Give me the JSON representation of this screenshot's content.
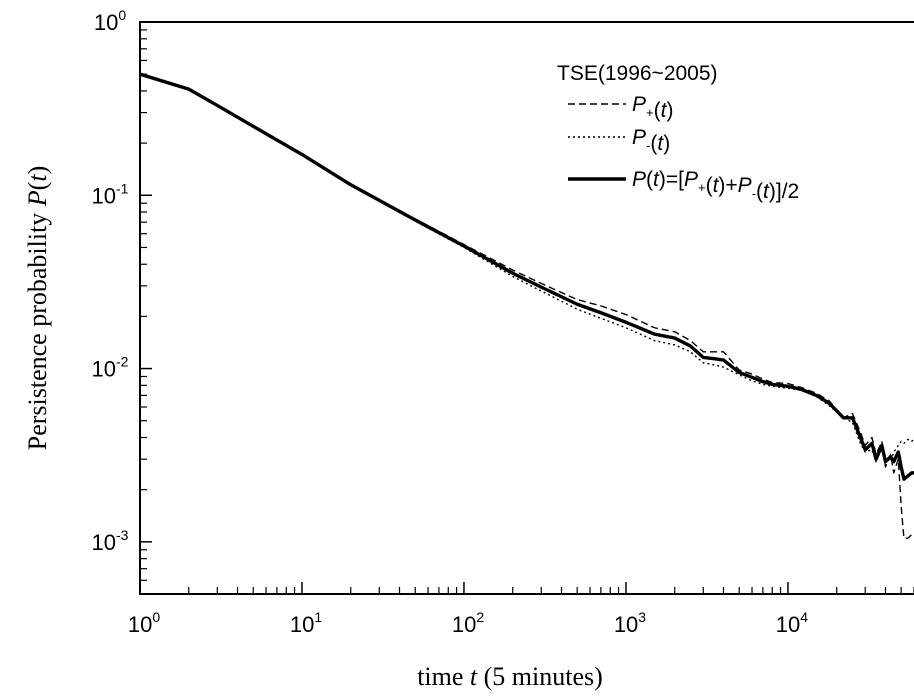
{
  "chart_data": {
    "type": "line",
    "xscale": "log",
    "yscale": "log",
    "xlim": [
      1,
      60000
    ],
    "ylim": [
      0.0005,
      1
    ],
    "xticks": [
      {
        "value": 1,
        "base": "10",
        "exp": "0"
      },
      {
        "value": 10,
        "base": "10",
        "exp": "1"
      },
      {
        "value": 100,
        "base": "10",
        "exp": "2"
      },
      {
        "value": 1000,
        "base": "10",
        "exp": "3"
      },
      {
        "value": 10000,
        "base": "10",
        "exp": "4"
      }
    ],
    "yticks": [
      {
        "value": 1,
        "base": "10",
        "exp": "0"
      },
      {
        "value": 0.1,
        "base": "10",
        "exp": "-1"
      },
      {
        "value": 0.01,
        "base": "10",
        "exp": "-2"
      },
      {
        "value": 0.001,
        "base": "10",
        "exp": "-3"
      }
    ],
    "xlabel": {
      "prefix": "time ",
      "italic": "t",
      "suffix": " (5 minutes)"
    },
    "ylabel": {
      "prefix": "Persistence probability ",
      "italic": "P",
      "open": "(",
      "italic2": "t",
      "close": ")"
    },
    "grid": false,
    "legend": {
      "position": "top-right",
      "title": "TSE(1996~2005)",
      "entries": [
        {
          "key": "plus",
          "label_parts": [
            "P",
            "+",
            "(",
            "t",
            ")"
          ],
          "style": "dashed"
        },
        {
          "key": "minus",
          "label_parts": [
            "P",
            "-",
            "(",
            "t",
            ")"
          ],
          "style": "dotted"
        },
        {
          "key": "avg",
          "label_parts": [
            "P",
            "(",
            "t",
            ")=[",
            "P",
            "+",
            "(",
            "t",
            ")+",
            "P",
            "-",
            "(",
            "t",
            ")]/2"
          ],
          "style": "solid-thick"
        }
      ]
    },
    "series": [
      {
        "name": "P+(t)",
        "key": "plus",
        "style": "dashed",
        "x": [
          1,
          2,
          3,
          5,
          10,
          20,
          50,
          100,
          200,
          300,
          500,
          700,
          1000,
          1500,
          2000,
          2500,
          3000,
          3500,
          4000,
          5000,
          6000,
          7000,
          8000,
          10000,
          12000,
          15000,
          18000,
          20000,
          22000,
          25000,
          28000,
          30000,
          33000,
          35000,
          38000,
          40000,
          43000,
          45000,
          48000,
          50000,
          52000,
          55000,
          58000,
          60000
        ],
        "y": [
          0.5,
          0.41,
          0.33,
          0.25,
          0.172,
          0.116,
          0.073,
          0.052,
          0.037,
          0.031,
          0.025,
          0.023,
          0.0205,
          0.0172,
          0.0163,
          0.0145,
          0.0125,
          0.0125,
          0.0125,
          0.0098,
          0.0093,
          0.0087,
          0.0083,
          0.0082,
          0.0078,
          0.0072,
          0.0065,
          0.0058,
          0.0052,
          0.0055,
          0.0043,
          0.0036,
          0.004,
          0.0032,
          0.0038,
          0.0027,
          0.0032,
          0.0025,
          0.003,
          0.0016,
          0.00105,
          0.00105,
          0.0011,
          0.0011
        ]
      },
      {
        "name": "P-(t)",
        "key": "minus",
        "style": "dotted",
        "x": [
          1,
          2,
          3,
          5,
          10,
          20,
          50,
          100,
          200,
          300,
          500,
          700,
          1000,
          1500,
          2000,
          2500,
          3000,
          3500,
          4000,
          5000,
          6000,
          7000,
          8000,
          10000,
          12000,
          15000,
          18000,
          20000,
          22000,
          25000,
          28000,
          30000,
          33000,
          35000,
          38000,
          40000,
          43000,
          45000,
          48000,
          50000,
          52000,
          55000,
          58000,
          60000
        ],
        "y": [
          0.5,
          0.41,
          0.33,
          0.25,
          0.172,
          0.115,
          0.071,
          0.05,
          0.034,
          0.028,
          0.022,
          0.0195,
          0.0172,
          0.0145,
          0.0137,
          0.0125,
          0.0108,
          0.0105,
          0.0102,
          0.0092,
          0.0085,
          0.0081,
          0.0079,
          0.0077,
          0.0075,
          0.0069,
          0.0061,
          0.0056,
          0.0052,
          0.0049,
          0.0037,
          0.0033,
          0.0034,
          0.0029,
          0.0035,
          0.0031,
          0.0029,
          0.0033,
          0.0036,
          0.0038,
          0.0037,
          0.0039,
          0.0038,
          0.0039
        ]
      },
      {
        "name": "P(t)=[P+(t)+P-(t)]/2",
        "key": "avg",
        "style": "solid-thick",
        "x": [
          1,
          2,
          3,
          5,
          10,
          20,
          50,
          100,
          200,
          300,
          500,
          700,
          1000,
          1500,
          2000,
          2500,
          3000,
          3500,
          4000,
          5000,
          6000,
          7000,
          8000,
          10000,
          12000,
          15000,
          18000,
          20000,
          22000,
          25000,
          28000,
          30000,
          33000,
          35000,
          38000,
          40000,
          43000,
          45000,
          48000,
          50000,
          52000,
          55000,
          58000,
          60000
        ],
        "y": [
          0.5,
          0.41,
          0.33,
          0.25,
          0.172,
          0.115,
          0.072,
          0.051,
          0.0355,
          0.0295,
          0.0235,
          0.021,
          0.0185,
          0.0158,
          0.015,
          0.0135,
          0.0116,
          0.0114,
          0.0112,
          0.0095,
          0.0089,
          0.0084,
          0.0081,
          0.0079,
          0.0076,
          0.007,
          0.0063,
          0.0057,
          0.0052,
          0.0052,
          0.004,
          0.0034,
          0.0037,
          0.003,
          0.0036,
          0.0029,
          0.0031,
          0.0029,
          0.0033,
          0.0027,
          0.0023,
          0.0024,
          0.0025,
          0.0025
        ]
      }
    ]
  }
}
